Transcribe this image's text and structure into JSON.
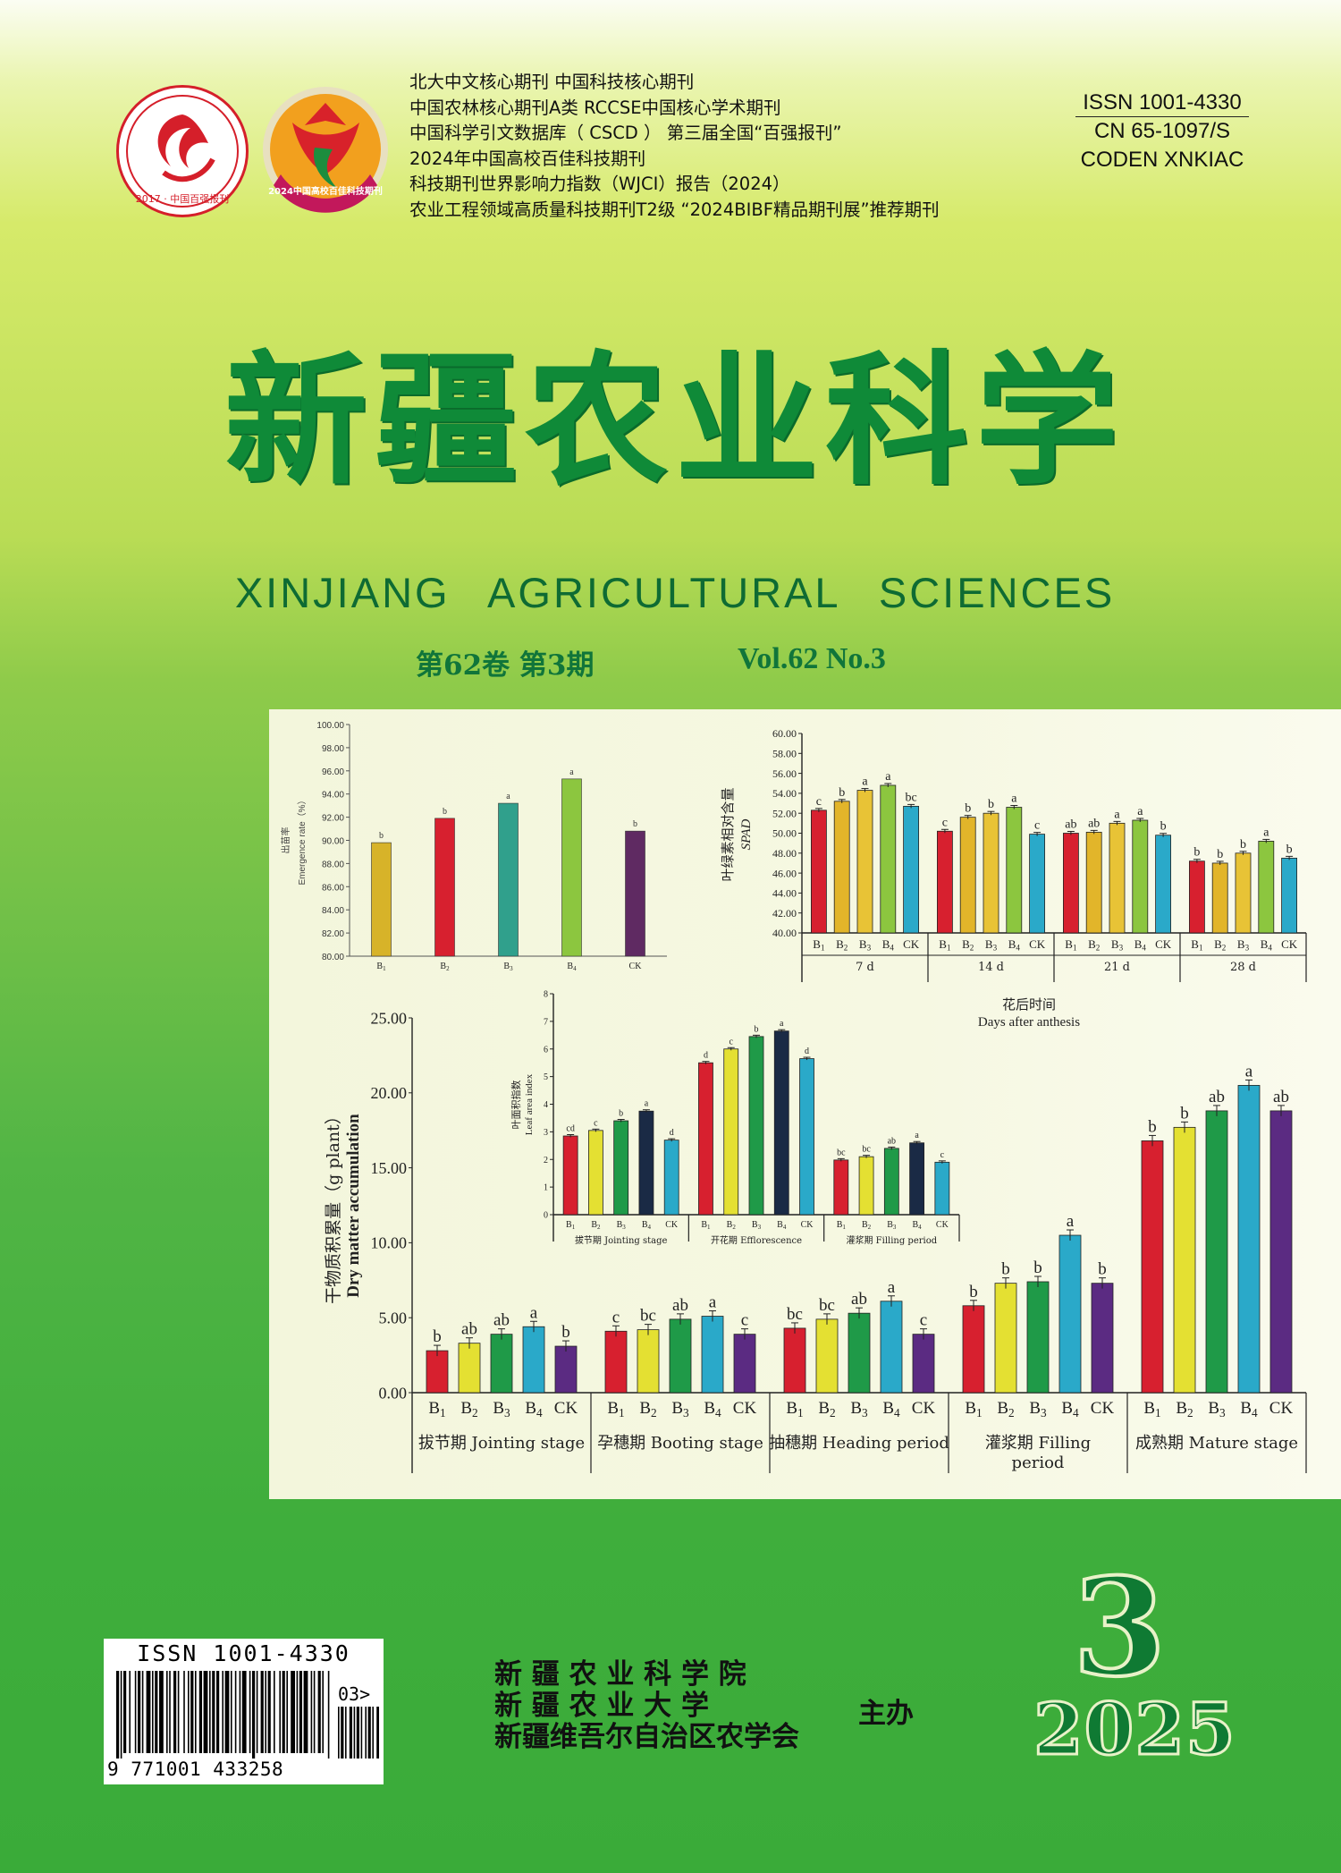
{
  "honors": [
    "北大中文核心期刊  中国科技核心期刊",
    "中国农林核心期刊A类  RCCSE中国核心学术期刊",
    "中国科学引文数据库（ CSCD ） 第三届全国“百强报刊”",
    "2024年中国高校百佳科技期刊",
    "科技期刊世界影响力指数（WJCI）报告（2024）",
    "农业工程领域高质量科技期刊T2级 “2024BIBF精品期刊展”推荐期刊"
  ],
  "logos": {
    "left_text": "2017 · 中国百强报刊",
    "right_text": "2024中国高校百佳科技期刊"
  },
  "issn_block": {
    "issn": "ISSN  1001-4330",
    "cn": "CN 65-1097/S",
    "coden": "CODEN  XNKIAC"
  },
  "title": {
    "cn": "新疆农业科学",
    "en": "XINJIANG AGRICULTURAL SCIENCES"
  },
  "volume": {
    "cn": "第62卷 第3期",
    "en": "Vol.62 No.3"
  },
  "chart_data": [
    {
      "type": "bar",
      "ylabel_cn": "出苗率",
      "ylabel": "Emergence rate（%）",
      "categories": [
        "B1",
        "B2",
        "B3",
        "B4",
        "CK"
      ],
      "values": [
        89.8,
        91.9,
        93.2,
        95.3,
        90.8
      ],
      "letters": [
        "b",
        "b",
        "a",
        "a",
        "b"
      ],
      "ylim": [
        80,
        100
      ],
      "yticks": [
        "80.00",
        "82.00",
        "84.00",
        "86.00",
        "88.00",
        "90.00",
        "92.00",
        "94.00",
        "96.00",
        "98.00",
        "100.00"
      ],
      "colors": [
        "#d7b329",
        "#d7202f",
        "#30a08c",
        "#8cc63f",
        "#5f2a62"
      ]
    },
    {
      "type": "bar",
      "ylabel_cn": "叶绿素相对含量",
      "ylabel": "SPAD",
      "categories": [
        "7 d",
        "14 d",
        "21 d",
        "28 d"
      ],
      "xlabel_cn": "花后时间",
      "xlabel": "Days after anthesis",
      "tick_labels": [
        "B1",
        "B2",
        "B3",
        "B4",
        "CK"
      ],
      "ylim": [
        40,
        60
      ],
      "yticks": [
        "40.00",
        "42.00",
        "44.00",
        "46.00",
        "48.00",
        "50.00",
        "52.00",
        "54.00",
        "56.00",
        "58.00",
        "60.00"
      ],
      "series": [
        {
          "values": [
            52.3,
            50.2,
            50.0,
            47.2
          ]
        },
        {
          "values": [
            53.2,
            51.6,
            50.1,
            47.0
          ]
        },
        {
          "values": [
            54.3,
            52.0,
            51.0,
            48.0
          ]
        },
        {
          "values": [
            54.8,
            52.6,
            51.3,
            49.2
          ]
        },
        {
          "values": [
            52.7,
            49.9,
            49.8,
            47.5
          ]
        }
      ],
      "letters": [
        [
          "c",
          "b",
          "a",
          "a",
          "bc"
        ],
        [
          "c",
          "b",
          "b",
          "a",
          "c"
        ],
        [
          "ab",
          "ab",
          "a",
          "a",
          "b"
        ],
        [
          "b",
          "b",
          "b",
          "a",
          "b"
        ]
      ],
      "colors": [
        "#d7202f",
        "#e2b52a",
        "#e8c336",
        "#8cc63f",
        "#2aa9c9"
      ]
    },
    {
      "type": "bar",
      "ylabel_cn": "叶面积指数",
      "ylabel": "Leaf area index",
      "categories": [
        "拔节期 Jointing stage",
        "开花期 Efflorescence",
        "灌浆期 Filling period"
      ],
      "tick_labels": [
        "B1",
        "B2",
        "B3",
        "B4",
        "CK"
      ],
      "ylim": [
        0,
        8
      ],
      "yticks": [
        "0",
        "1",
        "2",
        "3",
        "4",
        "5",
        "6",
        "7",
        "8"
      ],
      "series": [
        {
          "values": [
            2.85,
            5.5,
            1.98
          ]
        },
        {
          "values": [
            3.05,
            6.0,
            2.1
          ]
        },
        {
          "values": [
            3.4,
            6.45,
            2.4
          ]
        },
        {
          "values": [
            3.75,
            6.65,
            2.6
          ]
        },
        {
          "values": [
            2.7,
            5.65,
            1.9
          ]
        }
      ],
      "letters": [
        [
          "cd",
          "c",
          "b",
          "a",
          "d"
        ],
        [
          "d",
          "c",
          "b",
          "a",
          "d"
        ],
        [
          "bc",
          "bc",
          "ab",
          "a",
          "c"
        ]
      ],
      "colors": [
        "#d7202f",
        "#e4e032",
        "#1f9a48",
        "#1a2a45",
        "#2aa9c9"
      ]
    },
    {
      "type": "bar",
      "ylabel_cn": "干物质积累量（g  plant）",
      "ylabel": "Dry matter accumulation",
      "categories": [
        "拔节期 Jointing stage",
        "孕穗期 Booting stage",
        "抽穗期 Heading period",
        "灌浆期 Filling  period",
        "成熟期 Mature stage"
      ],
      "tick_labels": [
        "B1",
        "B2",
        "B3",
        "B4",
        "CK"
      ],
      "ylim": [
        0,
        25
      ],
      "yticks": [
        "0.00",
        "5.00",
        "10.00",
        "15.00",
        "20.00",
        "25.00"
      ],
      "series": [
        {
          "values": [
            2.8,
            4.1,
            4.3,
            5.8,
            16.8
          ]
        },
        {
          "values": [
            3.3,
            4.2,
            4.9,
            7.3,
            17.7
          ]
        },
        {
          "values": [
            3.9,
            4.9,
            5.3,
            7.4,
            18.8
          ]
        },
        {
          "values": [
            4.4,
            5.1,
            6.1,
            10.5,
            20.5
          ]
        },
        {
          "values": [
            3.1,
            3.9,
            3.9,
            7.3,
            18.8
          ]
        }
      ],
      "letters": [
        [
          "b",
          "ab",
          "ab",
          "a",
          "b"
        ],
        [
          "c",
          "bc",
          "ab",
          "a",
          "c"
        ],
        [
          "bc",
          "bc",
          "ab",
          "a",
          "c"
        ],
        [
          "b",
          "b",
          "b",
          "a",
          "b"
        ],
        [
          "b",
          "b",
          "ab",
          "a",
          "ab"
        ]
      ],
      "colors": [
        "#d7202f",
        "#e4e032",
        "#1f9a48",
        "#2aa9c9",
        "#5b2b82"
      ]
    }
  ],
  "barcode": {
    "issn_label": "ISSN 1001-4330",
    "digits": "9 771001 433258",
    "suffix": "03>"
  },
  "sponsors": {
    "lines": [
      "新 疆 农 业 科 学 院",
      "新  疆  农  业  大  学",
      "新疆维吾尔自治区农学会"
    ],
    "role": "主办"
  },
  "issue": {
    "number": "3",
    "year": "2025"
  },
  "colors": {
    "title_green": "#0f8a38",
    "background_top": "#d6ea6a",
    "background_bottom": "#3aab39"
  }
}
